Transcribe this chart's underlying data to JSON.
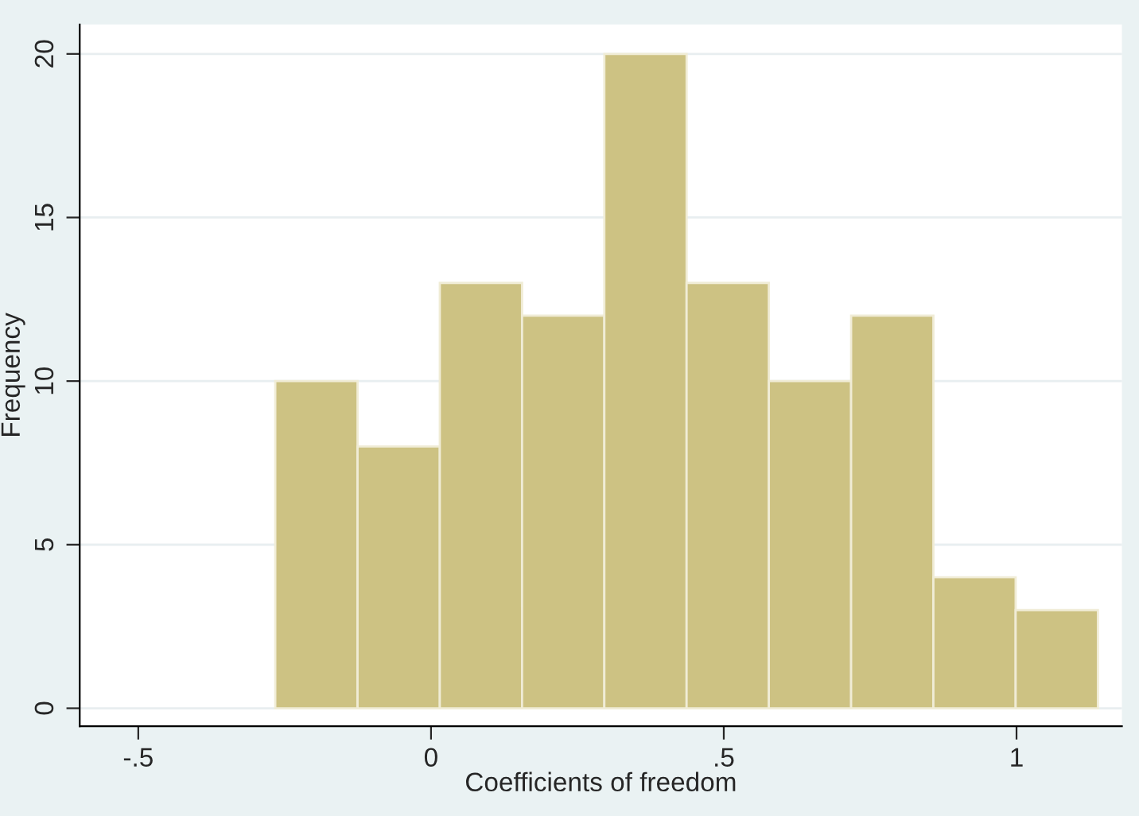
{
  "chart_data": {
    "type": "histogram",
    "xlabel": "Coefficients of freedom",
    "ylabel": "Frequency",
    "bins": [
      -0.266,
      -0.1255,
      0.015,
      0.1555,
      0.296,
      0.4365,
      0.577,
      0.7175,
      0.858,
      0.9985,
      1.139
    ],
    "values": [
      10,
      8,
      13,
      12,
      20,
      13,
      10,
      12,
      4,
      3
    ],
    "color": "#cdc283",
    "xlim": [
      -0.6,
      1.18
    ],
    "ylim": [
      -0.55,
      20.9
    ],
    "xticks": [
      {
        "value": -0.5,
        "label": "-.5"
      },
      0,
      {
        "value": 0.5,
        "label": ".5"
      },
      1
    ],
    "yticks": [
      0,
      5,
      10,
      15,
      20
    ],
    "grid": "y"
  }
}
